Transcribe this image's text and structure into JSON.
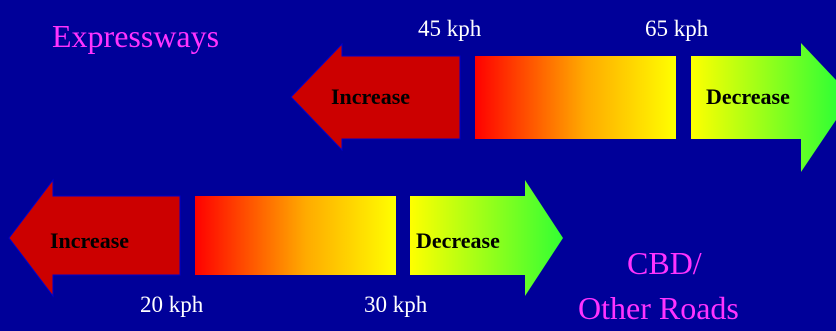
{
  "top_row": {
    "road_type": "Expressways",
    "low_speed": "45 kph",
    "high_speed": "65 kph",
    "increase_label": "Increase",
    "decrease_label": "Decrease"
  },
  "bottom_row": {
    "road_type_line1": "CBD/",
    "road_type_line2": "Other Roads",
    "low_speed": "20 kph",
    "high_speed": "30 kph",
    "increase_label": "Increase",
    "decrease_label": "Decrease"
  },
  "colors": {
    "background": "#000099",
    "increase_arrow": "#cc0000",
    "decrease_arrow_start": "#ffff00",
    "decrease_arrow_end": "#33ff33",
    "band_start": "#ff0000",
    "band_end": "#ffff00",
    "road_label": "#ff33ff",
    "speed_label": "#ffffff"
  }
}
